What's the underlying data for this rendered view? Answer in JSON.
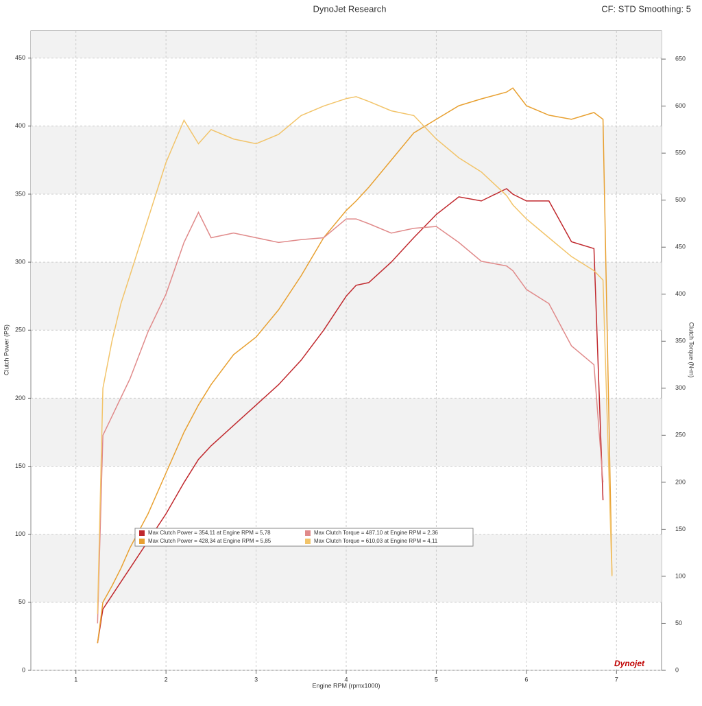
{
  "header": {
    "title": "DynoJet Research",
    "settings": "CF: STD Smoothing: 5",
    "logo": "Dynojet"
  },
  "chart_data": {
    "type": "line",
    "x_label": "Engine RPM (rpmx1000)",
    "y_label": "Clutch Power (PS)",
    "y2_label": "Clutch Torque (N-m)",
    "x": [
      1.24,
      1.3,
      1.4,
      1.5,
      1.6,
      1.8,
      2.0,
      2.2,
      2.36,
      2.5,
      2.75,
      3.0,
      3.25,
      3.5,
      3.75,
      4.0,
      4.11,
      4.25,
      4.5,
      4.75,
      5.0,
      5.25,
      5.5,
      5.78,
      5.85,
      6.0,
      6.25,
      6.5,
      6.75,
      6.85,
      6.95
    ],
    "xlim": [
      0.5,
      7.5
    ],
    "xticks": [
      1,
      2,
      3,
      4,
      5,
      6,
      7
    ],
    "ylim": [
      0,
      470
    ],
    "yticks": [
      0,
      50,
      100,
      150,
      200,
      250,
      300,
      350,
      400,
      450
    ],
    "y2lim": [
      0,
      680
    ],
    "y2ticks": [
      0,
      50,
      100,
      150,
      200,
      250,
      300,
      350,
      400,
      450,
      500,
      550,
      600,
      650
    ],
    "grid": true,
    "series": [
      {
        "name": "Max Clutch Power = 354,11 at Engine RPM = 5,78",
        "color": "#c0282d",
        "axis": "y",
        "values": [
          20,
          45,
          55,
          65,
          75,
          95,
          115,
          138,
          155,
          165,
          180,
          195,
          210,
          228,
          250,
          275,
          283,
          285,
          300,
          318,
          335,
          348,
          345,
          354,
          350,
          345,
          345,
          315,
          310,
          125,
          null
        ]
      },
      {
        "name": "Max Clutch Power = 428,34 at Engine RPM = 5,85",
        "color": "#e8a030",
        "axis": "y",
        "values": [
          20,
          50,
          62,
          75,
          90,
          115,
          145,
          175,
          195,
          210,
          232,
          245,
          265,
          290,
          318,
          338,
          345,
          355,
          375,
          395,
          405,
          415,
          420,
          425,
          428,
          415,
          408,
          405,
          410,
          405,
          70
        ]
      },
      {
        "name": "Max Clutch Torque = 487,10 at Engine RPM = 2,36",
        "color": "#e08a8a",
        "axis": "y2",
        "values": [
          50,
          250,
          270,
          290,
          310,
          360,
          400,
          455,
          487,
          460,
          465,
          460,
          455,
          458,
          460,
          480,
          480,
          475,
          465,
          470,
          472,
          455,
          435,
          430,
          425,
          405,
          390,
          345,
          325,
          200,
          null
        ]
      },
      {
        "name": "Max Clutch Torque = 610,03 at Engine RPM = 4,11",
        "color": "#f2c46a",
        "axis": "y2",
        "values": [
          60,
          300,
          350,
          390,
          420,
          480,
          540,
          585,
          560,
          575,
          565,
          560,
          570,
          590,
          600,
          608,
          610,
          605,
          595,
          590,
          565,
          545,
          530,
          505,
          495,
          480,
          460,
          440,
          425,
          415,
          100
        ]
      }
    ]
  }
}
